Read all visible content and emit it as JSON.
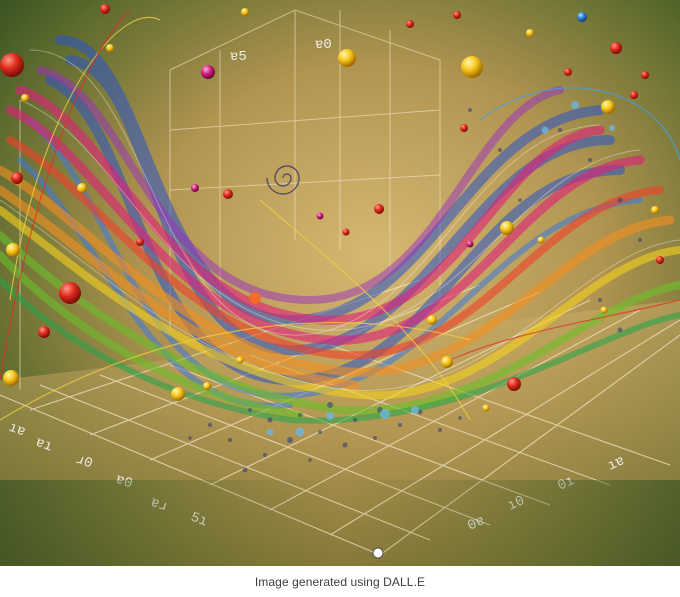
{
  "caption": "Image generated using DALL.E",
  "image": {
    "subject": "illustration",
    "colors": {
      "background_dark": "#2f4a1e",
      "background_light": "#b59a55",
      "grid_line": "#f2e6c4"
    }
  }
}
